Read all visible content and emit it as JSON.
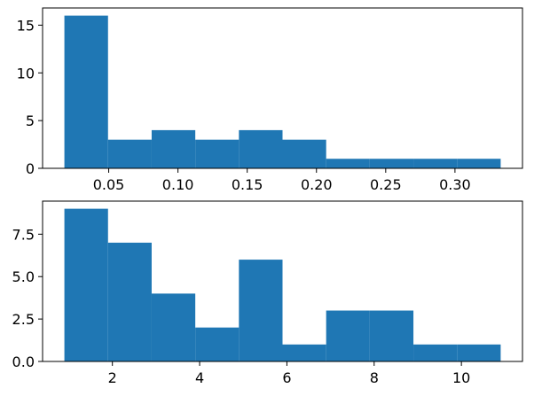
{
  "chart_data": [
    {
      "type": "bar",
      "subtype": "histogram",
      "color": "#1f77b4",
      "bin_edges": [
        0.018,
        0.0495,
        0.081,
        0.1125,
        0.144,
        0.1755,
        0.207,
        0.2385,
        0.27,
        0.3015,
        0.333
      ],
      "values": [
        16,
        3,
        4,
        3,
        4,
        3,
        1,
        1,
        1,
        1
      ],
      "xlim": [
        0.00225,
        0.34875
      ],
      "ylim": [
        0,
        16.8
      ],
      "xticks": [
        0.05,
        0.1,
        0.15,
        0.2,
        0.25,
        0.3
      ],
      "xtick_labels": [
        "0.05",
        "0.10",
        "0.15",
        "0.20",
        "0.25",
        "0.30"
      ],
      "yticks": [
        0,
        5,
        10,
        15
      ],
      "ytick_labels": [
        "0",
        "5",
        "10",
        "15"
      ],
      "grid": false
    },
    {
      "type": "bar",
      "subtype": "histogram",
      "color": "#1f77b4",
      "bin_edges": [
        0.9,
        1.9,
        2.9,
        3.9,
        4.9,
        5.9,
        6.9,
        7.9,
        8.9,
        9.9,
        10.9
      ],
      "values": [
        9,
        7,
        4,
        2,
        6,
        1,
        3,
        3,
        1,
        1
      ],
      "xlim": [
        0.4,
        11.4
      ],
      "ylim": [
        0,
        9.45
      ],
      "xticks": [
        2,
        4,
        6,
        8,
        10
      ],
      "xtick_labels": [
        "2",
        "4",
        "6",
        "8",
        "10"
      ],
      "yticks": [
        0,
        2.5,
        5.0,
        7.5
      ],
      "ytick_labels": [
        "0.0",
        "2.5",
        "5.0",
        "7.5"
      ],
      "grid": false
    }
  ]
}
